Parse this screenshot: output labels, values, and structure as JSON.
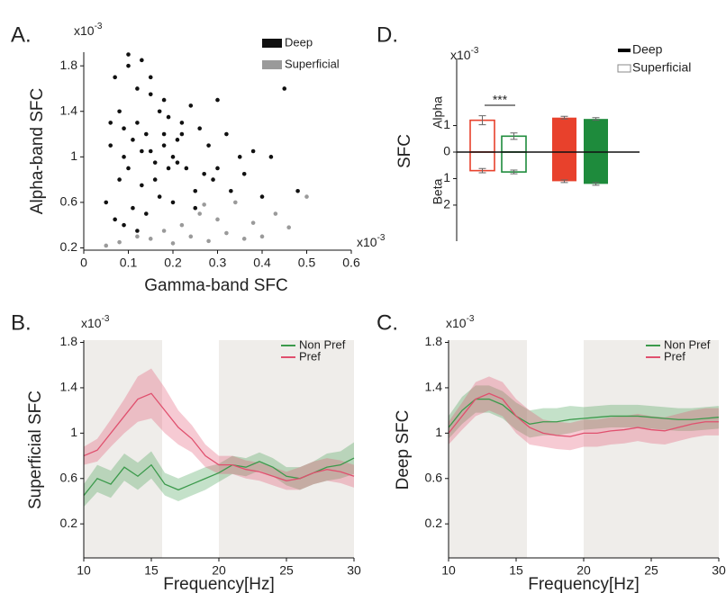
{
  "chart_data": [
    {
      "type": "scatter",
      "panel_label": "A.",
      "x_label": "Gamma-band SFC",
      "y_label": "Alpha-band SFC",
      "x_multiplier": {
        "base": "x10",
        "power": "-3"
      },
      "y_multiplier": {
        "base": "x10",
        "power": "-3"
      },
      "xlim": [
        0,
        0.6
      ],
      "ylim": [
        0.18,
        1.92
      ],
      "xticks": [
        0,
        0.1,
        0.2,
        0.3,
        0.4,
        0.5,
        0.6
      ],
      "yticks": [
        0.2,
        0.6,
        1,
        1.4,
        1.8
      ],
      "legend": "upper right",
      "series": [
        {
          "name": "Deep",
          "color": "#111111",
          "x": [
            0.06,
            0.08,
            0.1,
            0.12,
            0.14,
            0.16,
            0.18,
            0.2,
            0.22,
            0.25,
            0.28,
            0.3,
            0.05,
            0.07,
            0.09,
            0.11,
            0.13,
            0.15,
            0.17,
            0.19,
            0.21,
            0.24,
            0.27,
            0.32,
            0.35,
            0.07,
            0.09,
            0.1,
            0.12,
            0.13,
            0.15,
            0.16,
            0.18,
            0.2,
            0.23,
            0.26,
            0.29,
            0.33,
            0.38,
            0.42,
            0.45,
            0.06,
            0.08,
            0.11,
            0.14,
            0.17,
            0.19,
            0.22,
            0.25,
            0.3,
            0.36,
            0.4,
            0.48,
            0.1,
            0.12,
            0.15,
            0.18,
            0.21,
            0.09,
            0.13
          ],
          "values": [
            1.1,
            1.4,
            0.9,
            1.6,
            1.2,
            0.8,
            1.5,
            1.0,
            1.3,
            0.7,
            1.1,
            0.9,
            0.6,
            1.7,
            1.25,
            0.55,
            1.85,
            1.05,
            0.65,
            1.35,
            1.15,
            1.45,
            0.85,
            1.2,
            1.0,
            0.45,
            1.0,
            1.8,
            1.3,
            0.75,
            1.55,
            0.95,
            1.1,
            0.6,
            0.9,
            1.25,
            0.8,
            0.7,
            1.05,
            1.0,
            1.6,
            1.3,
            0.8,
            1.15,
            0.5,
            1.4,
            0.9,
            1.2,
            0.55,
            1.5,
            0.85,
            0.65,
            0.7,
            1.9,
            0.35,
            1.7,
            1.2,
            0.95,
            0.4,
            1.05
          ]
        },
        {
          "name": "Superficial",
          "color": "#9a9a9a",
          "x": [
            0.05,
            0.08,
            0.12,
            0.15,
            0.18,
            0.2,
            0.22,
            0.24,
            0.26,
            0.28,
            0.3,
            0.32,
            0.34,
            0.36,
            0.38,
            0.4,
            0.43,
            0.46,
            0.5,
            0.27
          ],
          "values": [
            0.22,
            0.25,
            0.3,
            0.28,
            0.35,
            0.24,
            0.4,
            0.3,
            0.5,
            0.26,
            0.45,
            0.33,
            0.6,
            0.28,
            0.42,
            0.3,
            0.5,
            0.38,
            0.65,
            0.58
          ]
        }
      ]
    },
    {
      "type": "line",
      "panel_label": "B.",
      "x_label": "Frequency[Hz]",
      "y_label": "Superficial SFC",
      "y_multiplier": {
        "base": "x10",
        "power": "-3"
      },
      "xlim": [
        10,
        30
      ],
      "ylim": [
        -0.1,
        1.82
      ],
      "xticks": [
        10,
        15,
        20,
        25,
        30
      ],
      "yticks": [
        0.2,
        0.6,
        1,
        1.4,
        1.8
      ],
      "shaded_regions": [
        [
          10,
          15.8
        ],
        [
          20,
          30
        ]
      ],
      "legend": "upper right",
      "x": [
        10,
        11,
        12,
        13,
        14,
        15,
        16,
        17,
        18,
        19,
        20,
        21,
        22,
        23,
        24,
        25,
        26,
        27,
        28,
        29,
        30
      ],
      "series": [
        {
          "name": "Non Pref",
          "color": "#3c9a4c",
          "values": [
            0.45,
            0.6,
            0.55,
            0.7,
            0.62,
            0.72,
            0.55,
            0.5,
            0.55,
            0.6,
            0.65,
            0.72,
            0.7,
            0.75,
            0.7,
            0.62,
            0.6,
            0.65,
            0.7,
            0.72,
            0.78
          ],
          "errors": [
            0.1,
            0.12,
            0.12,
            0.12,
            0.12,
            0.12,
            0.1,
            0.1,
            0.1,
            0.1,
            0.08,
            0.08,
            0.08,
            0.08,
            0.08,
            0.08,
            0.1,
            0.1,
            0.12,
            0.12,
            0.14
          ]
        },
        {
          "name": "Pref",
          "color": "#e0506e",
          "values": [
            0.8,
            0.85,
            1.0,
            1.15,
            1.3,
            1.35,
            1.2,
            1.05,
            0.95,
            0.8,
            0.72,
            0.72,
            0.68,
            0.66,
            0.62,
            0.58,
            0.6,
            0.65,
            0.68,
            0.66,
            0.62
          ],
          "errors": [
            0.08,
            0.1,
            0.12,
            0.15,
            0.2,
            0.22,
            0.2,
            0.15,
            0.12,
            0.1,
            0.08,
            0.08,
            0.08,
            0.08,
            0.08,
            0.08,
            0.1,
            0.1,
            0.1,
            0.1,
            0.1
          ]
        }
      ]
    },
    {
      "type": "line",
      "panel_label": "C.",
      "x_label": "Frequency[Hz]",
      "y_label": "Deep SFC",
      "y_multiplier": {
        "base": "x10",
        "power": "-3"
      },
      "xlim": [
        10,
        30
      ],
      "ylim": [
        -0.1,
        1.82
      ],
      "xticks": [
        10,
        15,
        20,
        25,
        30
      ],
      "yticks": [
        0.2,
        0.6,
        1,
        1.4,
        1.8
      ],
      "shaded_regions": [
        [
          10,
          15.8
        ],
        [
          20,
          30
        ]
      ],
      "legend": "upper right",
      "x": [
        10,
        11,
        12,
        13,
        14,
        15,
        16,
        17,
        18,
        19,
        20,
        21,
        22,
        23,
        24,
        25,
        26,
        27,
        28,
        29,
        30
      ],
      "series": [
        {
          "name": "Non Pref",
          "color": "#3c9a4c",
          "values": [
            1.05,
            1.2,
            1.3,
            1.3,
            1.25,
            1.15,
            1.08,
            1.1,
            1.1,
            1.12,
            1.13,
            1.14,
            1.15,
            1.15,
            1.15,
            1.14,
            1.13,
            1.12,
            1.12,
            1.13,
            1.14
          ],
          "errors": [
            0.1,
            0.12,
            0.12,
            0.12,
            0.12,
            0.12,
            0.12,
            0.12,
            0.12,
            0.12,
            0.1,
            0.1,
            0.1,
            0.1,
            0.1,
            0.1,
            0.1,
            0.1,
            0.1,
            0.1,
            0.1
          ]
        },
        {
          "name": "Pref",
          "color": "#e0506e",
          "values": [
            1.0,
            1.15,
            1.3,
            1.35,
            1.3,
            1.15,
            1.05,
            1.0,
            0.98,
            0.97,
            1.0,
            1.0,
            1.02,
            1.03,
            1.05,
            1.03,
            1.02,
            1.05,
            1.08,
            1.1,
            1.1
          ],
          "errors": [
            0.1,
            0.12,
            0.15,
            0.15,
            0.15,
            0.15,
            0.15,
            0.12,
            0.12,
            0.12,
            0.12,
            0.12,
            0.12,
            0.12,
            0.12,
            0.12,
            0.12,
            0.12,
            0.12,
            0.12,
            0.12
          ]
        }
      ]
    },
    {
      "type": "bar",
      "panel_label": "D.",
      "y_label": "SFC",
      "y_multiplier": {
        "base": "x10",
        "power": "-3"
      },
      "annotations": {
        "alpha": "Alpha",
        "beta": "Beta",
        "significance": "***"
      },
      "ylim": [
        -3.36,
        3.53
      ],
      "yticks": [
        {
          "value": -2,
          "label": "2"
        },
        {
          "value": -1,
          "label": "1"
        },
        0,
        1
      ],
      "bar_colors": [
        "#e8412c",
        "#1e8b3c"
      ],
      "legend": "upper right",
      "series": [
        {
          "name": "Deep",
          "style": "solid",
          "alpha": [
            1.3,
            1.25
          ],
          "alpha_err": [
            0.05,
            0.05
          ],
          "beta": [
            -1.1,
            -1.2
          ],
          "beta_err": [
            0.05,
            0.05
          ]
        },
        {
          "name": "Superficial",
          "style": "hollow",
          "alpha": [
            1.2,
            0.6
          ],
          "alpha_err": [
            0.17,
            0.12
          ],
          "beta": [
            -0.7,
            -0.75
          ],
          "beta_err": [
            0.08,
            0.07
          ]
        }
      ]
    }
  ]
}
